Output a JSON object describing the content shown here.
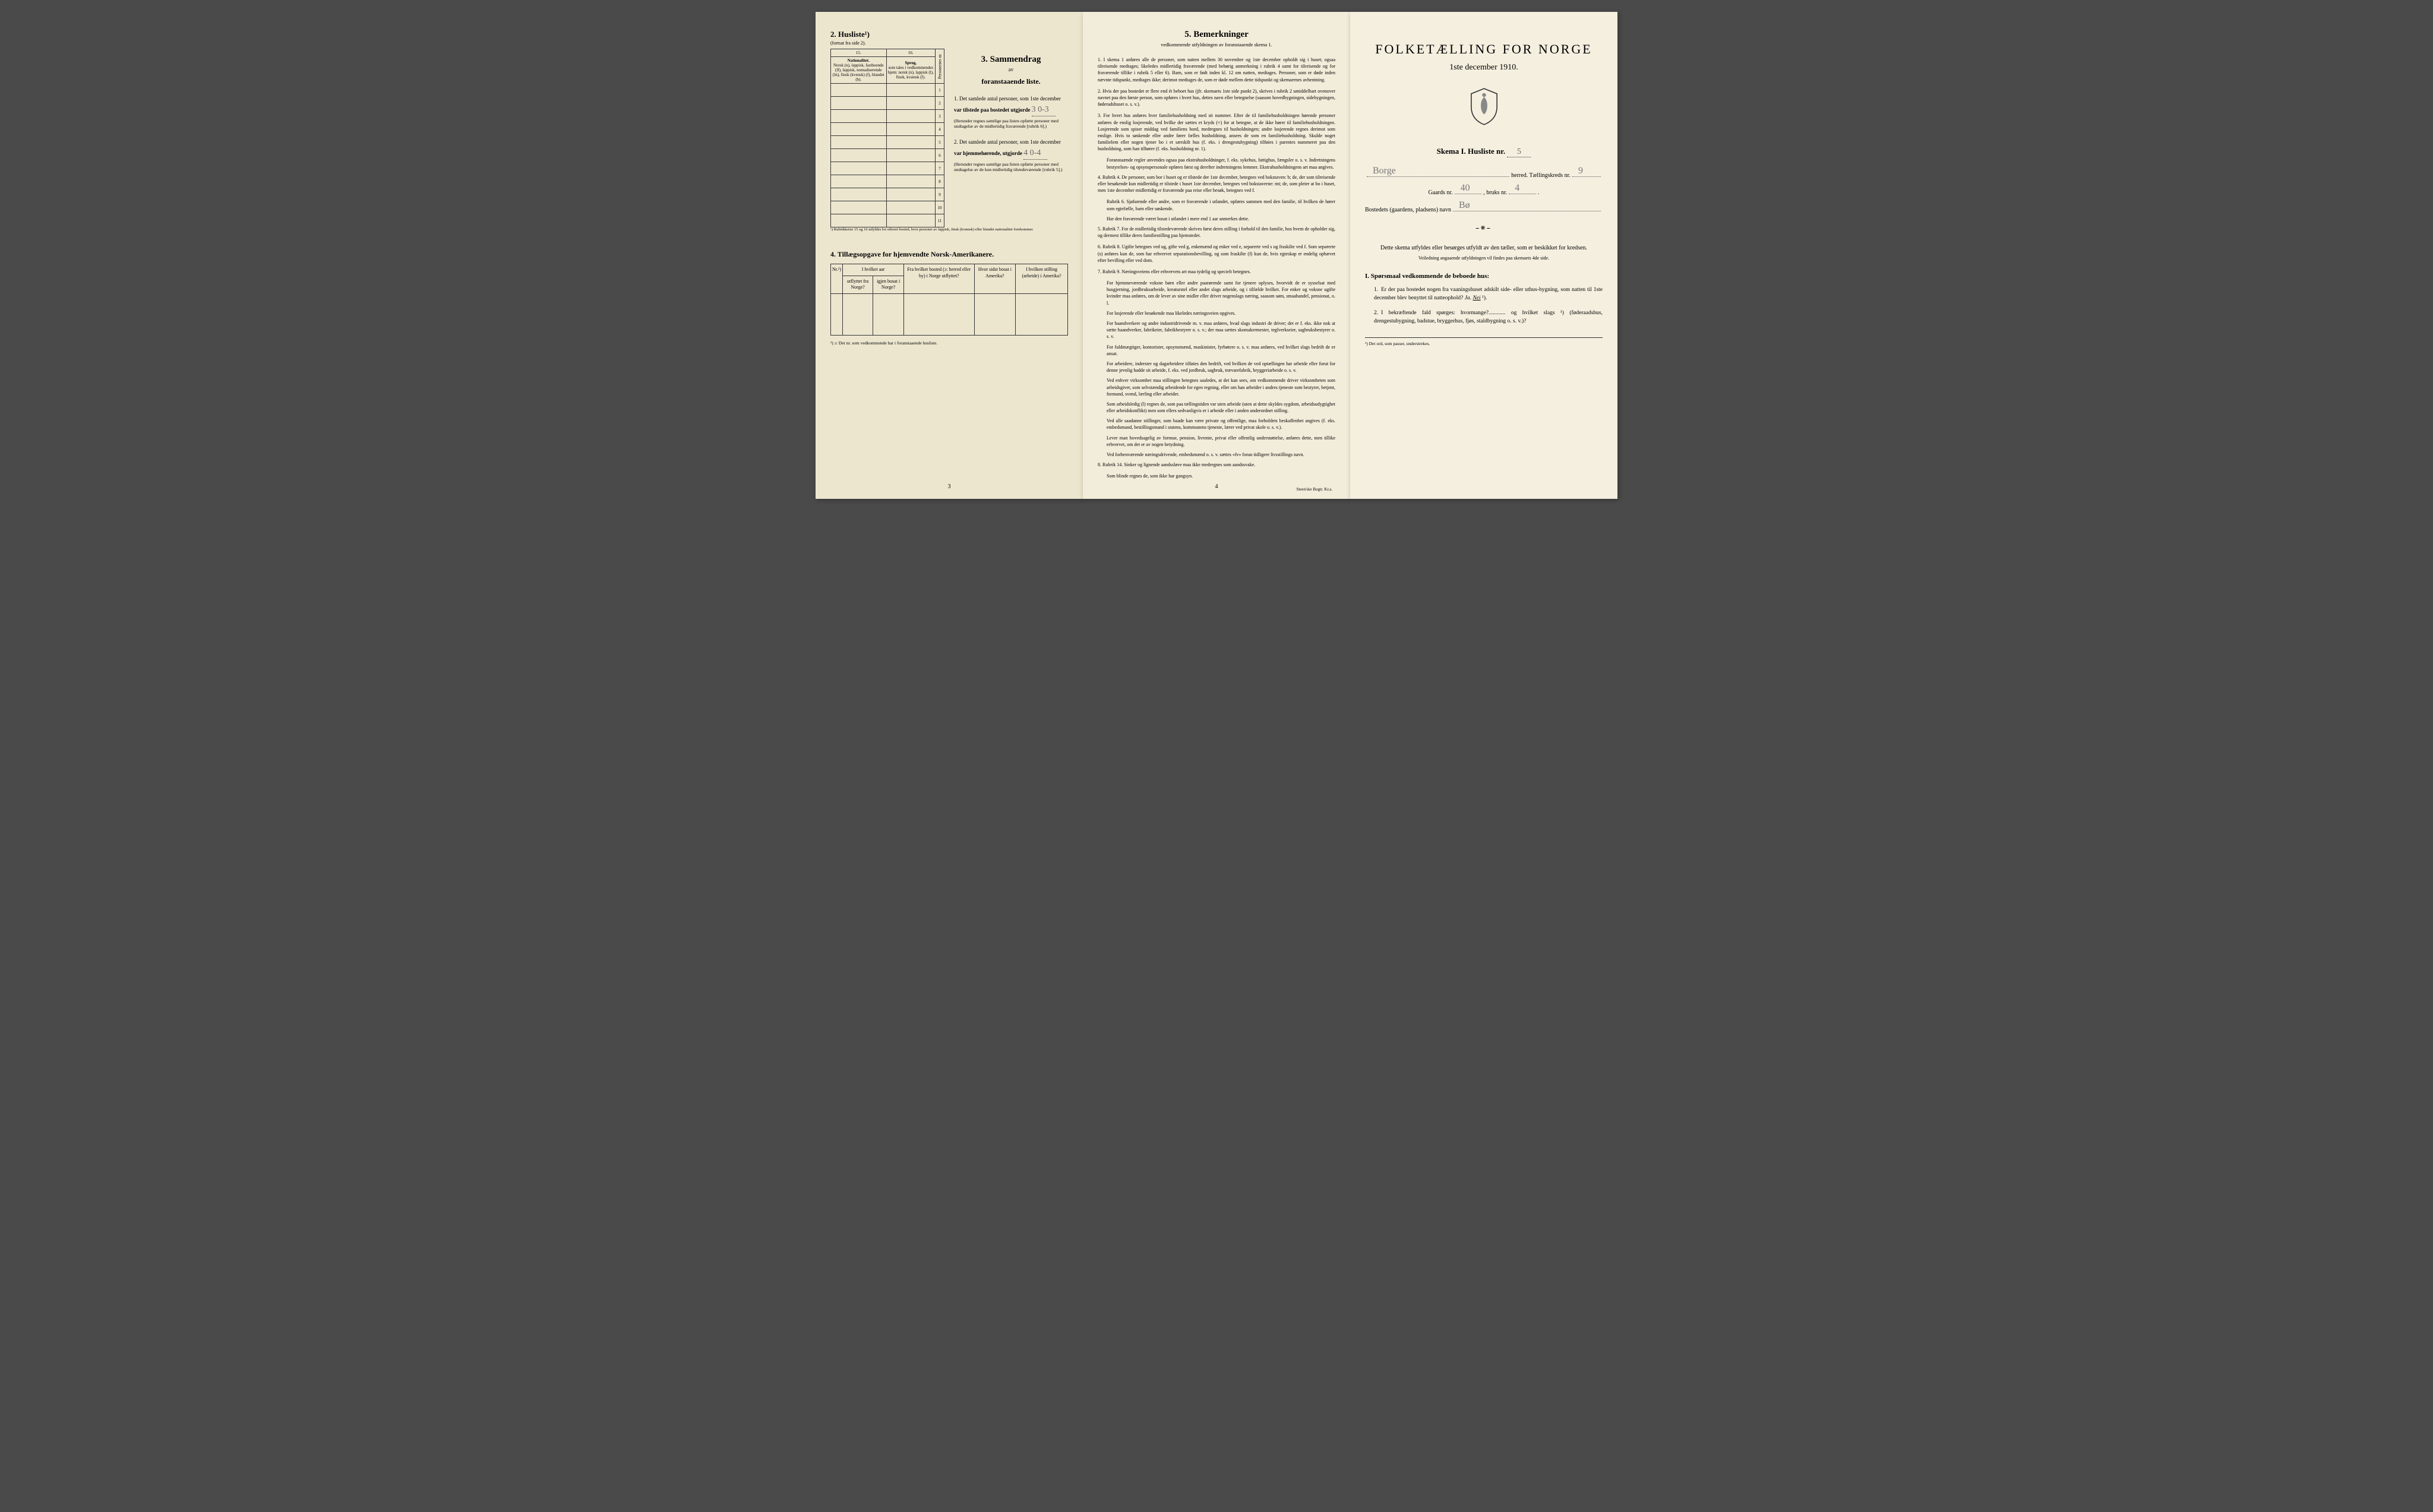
{
  "page1": {
    "sec2": {
      "title": "2. Husliste¹)",
      "subtitle": "(fortsat fra side 2).",
      "col15": "15.",
      "col16": "16.",
      "h_nat": "Nationalitet.",
      "h_nat_desc": "Norsk (n), lappisk, fastboende (lf), lappisk, nomadiserende (ln), finsk (kvensk) (f), blandet (b).",
      "h_sprog": "Sprog,",
      "h_sprog_desc": "som tales i vedkommendes hjem: norsk (n), lappisk (l), finsk, kvænsk (f).",
      "h_pnr": "Personernes nr.",
      "rows": [
        "1",
        "2",
        "3",
        "4",
        "5",
        "6",
        "7",
        "8",
        "9",
        "10",
        "11"
      ],
      "footnote": "¹) Rubrikkerne 15 og 16 utfyldes for ethvert bosted, hvor personer av lappisk, finsk (kvænsk) eller blandet nationalitet forekommer."
    },
    "sec3": {
      "title": "3. Sammendrag",
      "av": "av",
      "subtitle": "foranstaaende liste.",
      "item1_pre": "1. Det samlede antal personer, som 1ste december",
      "item1_mid": "var tilstede paa bostedet utgjorde",
      "item1_hand": "3    0-3",
      "item1_note": "(Herunder regnes samtlige paa listen opførte personer med undtagelse av de midlertidig fraværende [rubrik 6].)",
      "item2_pre": "2. Det samlede antal personer, som 1ste december",
      "item2_mid": "var hjemmehørende, utgjorde",
      "item2_hand": "4    0-4",
      "item2_note": "(Herunder regnes samtlige paa listen opførte personer med undtagelse av de kun midlertidig tilstedeværende [rubrik 5].)"
    },
    "sec4": {
      "title": "4. Tillægsopgave for hjemvendte Norsk-Amerikanere.",
      "h_nr": "Nr.²)",
      "h_utfl": "utflyttet fra Norge?",
      "h_bosat": "igjen bosat i Norge?",
      "h_aar": "I hvilket aar",
      "h_fra": "Fra hvilket bosted (ɔ: herred eller by) i Norge utflyttet?",
      "h_hvor": "Hvor sidst bosat i Amerika?",
      "h_stilling": "I hvilken stilling (arbeide) i Amerika?",
      "footnote": "²) ɔ: Det nr. som vedkommende har i foranstaaende husliste."
    },
    "pagenum": "3"
  },
  "page2": {
    "title": "5. Bemerkninger",
    "subtitle": "vedkommende utfyldningen av foranstaaende skema 1.",
    "items": [
      {
        "n": "1.",
        "t": "I skema 1 anføres alle de personer, som natten mellem 30 november og 1ste december opholdt sig i huset; ogsaa tilreisende medtages; likeledes midlertidig fraværende (med behørig anmerkning i rubrik 4 samt for tilreisende og for fraværende tillike i rubrik 5 eller 6). Barn, som er født inden kl. 12 om natten, medtages. Personer, som er døde inden nævnte tidspunkt, medtages ikke; derimot medtages de, som er døde mellem dette tidspunkt og skemaernes avhentning."
      },
      {
        "n": "2.",
        "t": "Hvis der paa bostedet er flere end ét beboet hus (jfr. skemaets 1ste side punkt 2), skrives i rubrik 2 umiddelbart ovenover navnet paa den første person, som opføres i hvert hus, dettes navn eller betegnelse (saasom hovedbygningen, sidebygningen, føderadshuset o. s. v.)."
      },
      {
        "n": "3.",
        "t": "For hvert hus anføres hver familiehusholdning med sit nummer. Efter de til familiehusholdningen hørende personer anføres de enslig losjerende, ved hvilke der sættes et kryds (×) for at betegne, at de ikke hører til familiehusholdningen. Losjerende som spiser middag ved familiens bord, medregnes til husholdningen; andre losjerende regnes derimot som enslige. Hvis to søskende eller andre fører fælles husholdning, ansees de som en familiehusholdning. Skulde noget familielem eller nogen tjener bo i et særskilt hus (f. eks. i drengestubygning) tilføies i parentes nummeret paa den husholdning, som han tilhører (f. eks. husholdning nr. 1)."
      },
      {
        "n": "",
        "t": "Foranstaænde regler anvendes ogsaa paa ekstrahusholdninger, f. eks. sykehus, fattighus, fængsler o. s. v. Indretningens bestyrelses- og opsynspersonale opføres først og derefter indretningens lemmer. Ekstrahusholdningens art maa angives."
      },
      {
        "n": "4.",
        "t": "Rubrik 4. De personer, som bor i huset og er tilstede der 1ste december, betegnes ved bokstaven: b; de, der som tilreisende eller besøkende kun midlertidig er tilstede i huset 1ste december, betegnes ved bokstaverne: mt; de, som pleier at bo i huset, men 1ste december midlertidig er fraværende paa reise eller besøk, betegnes ved f."
      },
      {
        "n": "",
        "t": "Rubrik 6. Sjøfarende eller andre, som er fraværende i utlandet, opføres sammen med den familie, til hvilken de hører som egtefælle, barn eller søskende."
      },
      {
        "n": "",
        "t": "Har den fraværende været bosat i utlandet i mere end 1 aar anmerkes dette."
      },
      {
        "n": "5.",
        "t": "Rubrik 7. For de midlertidig tilstedeværende skrives først deres stilling i forhold til den familie, hos hvem de opholder sig, og dermest tillike deres familiestilling paa hjemstedet."
      },
      {
        "n": "6.",
        "t": "Rubrik 8. Ugifte betegnes ved ug, gifte ved g, enkemænd og enker ved e, separerte ved s og fraskilte ved f. Som separerte (s) anføres kun de, som har erhvervet separationsbevilling, og som fraskilte (f) kun de, hvis egteskap er endelig ophævet efter bevilling eller ved dom."
      },
      {
        "n": "7.",
        "t": "Rubrik 9. Næringsveiens eller erhvervets art maa tydelig og specielt betegnes."
      },
      {
        "n": "",
        "t": "For hjemmeværende voksne børn eller andre paarørende samt for tjenere oplyses, hvorvidt de er sysselsat med husgjerning, jordbruksarbeide, kreaturstel eller andet slags arbeide, og i tilfælde hvilket. For enker og voksne ugifte kvinder maa anføres, om de lever av sine midler eller driver nogenslags næring, saasom søm, smaahandel, pensionat, o. l."
      },
      {
        "n": "",
        "t": "For losjerende eller besøkende maa likeledes næringsveien opgives."
      },
      {
        "n": "",
        "t": "For haandverkere og andre industridrivende m. v. maa anføres, hvad slags industri de driver; det er f. eks. ikke nok at sætte haandverker, fabrikeier, fabrikbestyrer o. s. v.; der maa sættes skomakermester, teglverkseier, sagbruksbestyrer o. s. v."
      },
      {
        "n": "",
        "t": "For fuldmægtiger, kontorister, opsynsmænd, maskinister, fyrbøtere o. s. v. maa anføres, ved hvilket slags bedrift de er ansat."
      },
      {
        "n": "",
        "t": "For arbeidere, inderster og dagarbeidere tilføies den bedrift, ved hvilken de ved optællingen har arbeide eller forut for denne jevnlig hadde sit arbeide, f. eks. ved jordbruk, sagbruk, trævarefabrik, bryggeriarbeide o. s. v."
      },
      {
        "n": "",
        "t": "Ved enhver virksomhet maa stillingen betegnes saaledes, at det kan sees, om vedkommende driver virksomheten som arbeidsgiver, som selvstændig arbeidende for egen regning, eller om han arbeider i andres tjeneste som bestyrer, betjent, formand, svend, lærling eller arbeider."
      },
      {
        "n": "",
        "t": "Som arbeidsledig (l) regnes de, som paa tællingstiden var uten arbeide (uten at dette skyldes sygdom, arbeidsudygtighet eller arbeidskonflikt) men som ellers sedvanligvis er i arbeide eller i anden underordnet stilling."
      },
      {
        "n": "",
        "t": "Ved alle saadanne stillinger, som baade kan være private og offentlige, maa forholdets beskaffenhet angives (f. eks. embedsmand, bestillingsmand i statens, kommunens tjeneste, lærer ved privat skole o. s. v.)."
      },
      {
        "n": "",
        "t": "Lever man hovedsagelig av formue, pension, livrente, privat eller offentlig understøttelse, anføres dette, men tillike erhvervet, om det er av nogen betydning."
      },
      {
        "n": "",
        "t": "Ved forhenværende næringsdrivende, embedsmænd o. s. v. sættes «fv» foran tidligere livsstillings navn."
      },
      {
        "n": "8.",
        "t": "Rubrik 14. Sinker og lignende aandssløve maa ikke medregnes som aandssvake."
      },
      {
        "n": "",
        "t": "Som blinde regnes de, som ikke har gangsyn."
      }
    ],
    "pagenum": "4",
    "printer": "Steen'ske Bogtr. Kr.a."
  },
  "page3": {
    "title": "FOLKETÆLLING FOR NORGE",
    "date": "1ste december 1910.",
    "skema": "Skema I.  Husliste nr.",
    "skema_hand": "5",
    "line1_hand": "Borge",
    "line1_lbl": "herred.  Tællingskreds nr.",
    "line1_hand2": "9",
    "line2_lbl1": "Gaards nr.",
    "line2_hand1": "40",
    "line2_lbl2": ", bruks nr.",
    "line2_hand2": "4",
    "line3_lbl": "Bostedets (gaardens, pladsens) navn",
    "line3_hand": "Bø",
    "instruct": "Dette skema utfyldes eller besørges utfyldt av den tæller, som er beskikket for kredsen.",
    "instruct_sub": "Veiledning angaaende utfyldningen vil findes paa skemaets 4de side.",
    "q_header": "I. Spørsmaal vedkommende de beboede hus:",
    "q1": "Er der paa bostedet nogen fra vaaningshuset adskilt side- eller uthus-bygning, som natten til 1ste december blev benyttet til natteophold?",
    "q1_ja": "Ja.",
    "q1_nei": "Nei",
    "q1_sup": " ¹).",
    "q2": "I bekræftende fald spørges: hvormange?............ og hvilket slags ¹) (føderaadshus, drengestubygning, badstue, bryggerhus, fjøs, staldbygning o. s. v.)?",
    "footnote": "¹) Det ord, som passer, understrekes."
  },
  "colors": {
    "page_bg": "#f0ebd8",
    "text": "#2a2a2a",
    "hand": "#777"
  }
}
